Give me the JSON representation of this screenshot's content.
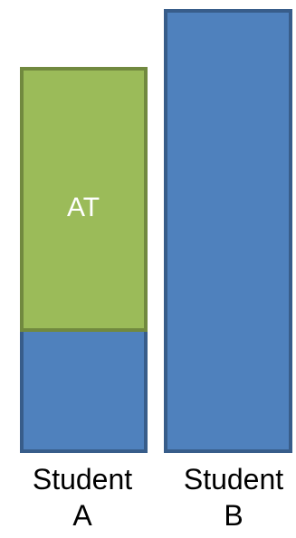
{
  "colors": {
    "base_fill": "#4F81BD",
    "base_stroke": "#385D8A",
    "at_fill": "#9BBB59",
    "at_stroke": "#71893F",
    "at_text": "#FFFFFF"
  },
  "segment_label": "AT",
  "students": [
    {
      "line1": "Student",
      "line2": "A"
    },
    {
      "line1": "Student",
      "line2": "B"
    }
  ]
}
